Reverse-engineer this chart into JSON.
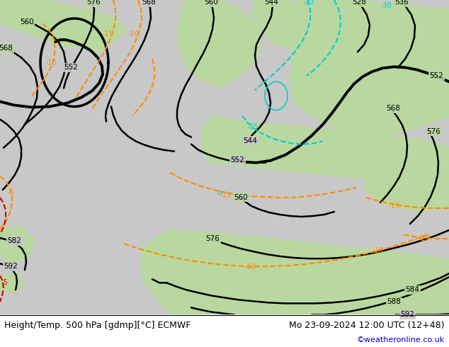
{
  "title_left": "Height/Temp. 500 hPa [gdmp][°C] ECMWF",
  "title_right": "Mo 23-09-2024 12:00 UTC (12+48)",
  "credit": "©weatheronline.co.uk",
  "footer_fontsize": 9,
  "credit_fontsize": 8,
  "credit_color": "#0000cc",
  "black_color": "#000000",
  "orange_color": "#ff8c00",
  "cyan_color": "#00ced1",
  "red_color": "#cc0000",
  "green_color": "#3cb371",
  "land_green": "#b8d8a0",
  "sea_gray": "#c8c8c8",
  "dark_gray": "#a0a0a0"
}
